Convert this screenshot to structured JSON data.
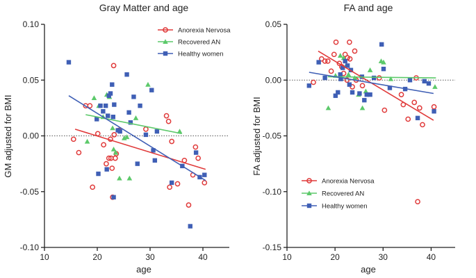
{
  "chart_data": [
    {
      "id": "gm",
      "type": "scatter",
      "title": "Gray Matter and age",
      "xlabel": "age",
      "ylabel": "GM adjusted for BMI",
      "xlim": [
        10,
        45
      ],
      "ylim": [
        -0.1,
        0.1
      ],
      "xticks": [
        10,
        20,
        30,
        40
      ],
      "xtick_labels": [
        "10",
        "20",
        "30",
        "40"
      ],
      "yticks": [
        -0.1,
        -0.05,
        0.0,
        0.05,
        0.1
      ],
      "ytick_labels": [
        "-0.10",
        "-0.05",
        "0.00",
        "0.05",
        "0.10"
      ],
      "reference_line_y": 0.0,
      "legend_position": "top-right",
      "grid": false,
      "series": [
        {
          "name": "Anorexia Nervosa",
          "marker": "circle-open",
          "color": "#e03a3a",
          "points": [
            [
              15.5,
              -0.003
            ],
            [
              16.5,
              -0.015
            ],
            [
              17.8,
              0.027
            ],
            [
              18.6,
              0.027
            ],
            [
              19.1,
              -0.046
            ],
            [
              20.1,
              0.002
            ],
            [
              21.2,
              -0.008
            ],
            [
              21.7,
              -0.025
            ],
            [
              22.2,
              -0.02
            ],
            [
              22.6,
              -0.02
            ],
            [
              22.8,
              -0.029
            ],
            [
              22.9,
              -0.055
            ],
            [
              23.1,
              0.063
            ],
            [
              23.2,
              0.001
            ],
            [
              23.6,
              -0.016
            ],
            [
              23.4,
              -0.02
            ],
            [
              24.1,
              0.005
            ],
            [
              22.5,
              -0.003
            ],
            [
              29.2,
              0.006
            ],
            [
              33.1,
              0.018
            ],
            [
              33.7,
              -0.046
            ],
            [
              34.1,
              -0.005
            ],
            [
              35.2,
              -0.043
            ],
            [
              36.5,
              -0.022
            ],
            [
              37.3,
              -0.062
            ],
            [
              38.1,
              -0.035
            ],
            [
              38.6,
              -0.01
            ],
            [
              39.1,
              -0.02
            ],
            [
              40.3,
              -0.042
            ],
            [
              33.5,
              0.013
            ]
          ],
          "fit": [
            [
              15.8,
              0.006
            ],
            [
              40.5,
              -0.03
            ]
          ]
        },
        {
          "name": "Recovered AN",
          "marker": "triangle",
          "color": "#5cc96a",
          "points": [
            [
              18.1,
              -0.005
            ],
            [
              19.4,
              0.034
            ],
            [
              20.3,
              0.027
            ],
            [
              21.1,
              0.017
            ],
            [
              21.8,
              0.037
            ],
            [
              22.3,
              0.035
            ],
            [
              22.9,
              0.007
            ],
            [
              23.1,
              -0.012
            ],
            [
              23.5,
              -0.015
            ],
            [
              24.2,
              -0.038
            ],
            [
              25.1,
              -0.002
            ],
            [
              25.6,
              -0.001
            ],
            [
              26.1,
              -0.038
            ],
            [
              27.3,
              0.016
            ],
            [
              29.6,
              0.046
            ],
            [
              35.6,
              0.004
            ]
          ],
          "fit": [
            [
              17.8,
              0.019
            ],
            [
              36.0,
              0.002
            ]
          ]
        },
        {
          "name": "Healthy women",
          "marker": "square",
          "color": "#3f5fb5",
          "points": [
            [
              14.6,
              0.066
            ],
            [
              19.9,
              0.015
            ],
            [
              20.6,
              0.027
            ],
            [
              21.1,
              0.022
            ],
            [
              21.6,
              0.027
            ],
            [
              22.0,
              0.018
            ],
            [
              22.2,
              0.036
            ],
            [
              22.5,
              0.038
            ],
            [
              22.8,
              0.046
            ],
            [
              23.0,
              0.017
            ],
            [
              23.2,
              0.028
            ],
            [
              23.9,
              0.005
            ],
            [
              21.8,
              -0.03
            ],
            [
              20.2,
              -0.034
            ],
            [
              23.1,
              -0.055
            ],
            [
              24.3,
              0.004
            ],
            [
              25.6,
              0.055
            ],
            [
              26.0,
              0.021
            ],
            [
              26.3,
              0.012
            ],
            [
              26.9,
              0.035
            ],
            [
              27.6,
              -0.025
            ],
            [
              28.1,
              0.027
            ],
            [
              29.2,
              0.001
            ],
            [
              30.3,
              0.041
            ],
            [
              30.6,
              -0.013
            ],
            [
              30.9,
              -0.022
            ],
            [
              31.3,
              0.004
            ],
            [
              34.1,
              -0.042
            ],
            [
              36.1,
              -0.027
            ],
            [
              37.6,
              -0.081
            ],
            [
              38.7,
              -0.015
            ],
            [
              39.4,
              -0.037
            ],
            [
              40.3,
              -0.035
            ]
          ],
          "fit": [
            [
              14.6,
              0.036
            ],
            [
              40.5,
              -0.04
            ]
          ]
        }
      ]
    },
    {
      "id": "fa",
      "type": "scatter",
      "title": "FA and age",
      "xlabel": "age",
      "ylabel": "FA adjusted for BMI",
      "xlim": [
        10,
        45
      ],
      "ylim": [
        -0.15,
        0.05
      ],
      "xticks": [
        10,
        20,
        30,
        40
      ],
      "xtick_labels": [
        "10",
        "20",
        "30",
        "40"
      ],
      "yticks": [
        -0.15,
        -0.1,
        -0.05,
        0.0,
        0.05
      ],
      "ytick_labels": [
        "-0.15",
        "-0.10",
        "-0.05",
        "0.00",
        "0.05"
      ],
      "reference_line_y": 0.0,
      "legend_position": "bottom-left",
      "grid": false,
      "series": [
        {
          "name": "Anorexia Nervosa",
          "marker": "circle-open",
          "color": "#e03a3a",
          "points": [
            [
              15.5,
              -0.002
            ],
            [
              17.2,
              0.019
            ],
            [
              17.9,
              0.017
            ],
            [
              18.5,
              0.017
            ],
            [
              19.2,
              0.008
            ],
            [
              19.8,
              0.023
            ],
            [
              20.2,
              0.034
            ],
            [
              20.9,
              0.015
            ],
            [
              21.4,
              0.012
            ],
            [
              21.8,
              0.006
            ],
            [
              22.1,
              0.023
            ],
            [
              22.6,
              0.02
            ],
            [
              23.0,
              0.034
            ],
            [
              23.1,
              0.019
            ],
            [
              23.6,
              -0.006
            ],
            [
              24.1,
              0.026
            ],
            [
              24.4,
              0.0
            ],
            [
              25.7,
              -0.005
            ],
            [
              29.2,
              0.002
            ],
            [
              30.3,
              -0.027
            ],
            [
              33.8,
              -0.013
            ],
            [
              34.2,
              -0.022
            ],
            [
              35.2,
              -0.035
            ],
            [
              36.5,
              -0.02
            ],
            [
              37.2,
              -0.109
            ],
            [
              37.6,
              -0.025
            ],
            [
              38.2,
              -0.04
            ],
            [
              40.6,
              -0.024
            ],
            [
              36.9,
              0.002
            ],
            [
              22.5,
              0.0
            ]
          ],
          "fit": [
            [
              16.5,
              0.026
            ],
            [
              40.5,
              -0.036
            ]
          ]
        },
        {
          "name": "Recovered AN",
          "marker": "triangle",
          "color": "#5cc96a",
          "points": [
            [
              18.6,
              -0.025
            ],
            [
              20.1,
              0.004
            ],
            [
              21.1,
              0.022
            ],
            [
              21.8,
              0.02
            ],
            [
              22.3,
              0.013
            ],
            [
              22.8,
              0.005
            ],
            [
              24.1,
              0.002
            ],
            [
              24.9,
              -0.013
            ],
            [
              25.7,
              -0.025
            ],
            [
              26.4,
              -0.01
            ],
            [
              27.3,
              0.009
            ],
            [
              29.6,
              0.017
            ],
            [
              30.1,
              0.016
            ],
            [
              31.6,
              0.001
            ],
            [
              40.8,
              -0.006
            ]
          ],
          "fit": [
            [
              18.5,
              0.003
            ],
            [
              41.0,
              0.002
            ]
          ]
        },
        {
          "name": "Healthy women",
          "marker": "square",
          "color": "#3f5fb5",
          "points": [
            [
              14.6,
              -0.005
            ],
            [
              16.6,
              0.016
            ],
            [
              17.9,
              0.002
            ],
            [
              20.1,
              -0.014
            ],
            [
              20.6,
              -0.011
            ],
            [
              21.1,
              0.005
            ],
            [
              21.6,
              0.011
            ],
            [
              22.1,
              0.017
            ],
            [
              22.6,
              0.013
            ],
            [
              23.0,
              -0.004
            ],
            [
              23.3,
              0.009
            ],
            [
              23.6,
              -0.011
            ],
            [
              25.1,
              -0.012
            ],
            [
              25.6,
              0.003
            ],
            [
              26.1,
              -0.018
            ],
            [
              26.6,
              -0.013
            ],
            [
              27.3,
              -0.013
            ],
            [
              28.1,
              0.002
            ],
            [
              29.7,
              0.032
            ],
            [
              30.1,
              0.01
            ],
            [
              31.4,
              -0.007
            ],
            [
              34.6,
              -0.008
            ],
            [
              35.6,
              0.0
            ],
            [
              37.2,
              -0.034
            ],
            [
              38.6,
              -0.001
            ],
            [
              39.5,
              -0.003
            ],
            [
              40.6,
              -0.028
            ],
            [
              21.2,
              0.001
            ]
          ],
          "fit": [
            [
              14.6,
              0.007
            ],
            [
              40.5,
              -0.012
            ]
          ]
        }
      ]
    }
  ]
}
